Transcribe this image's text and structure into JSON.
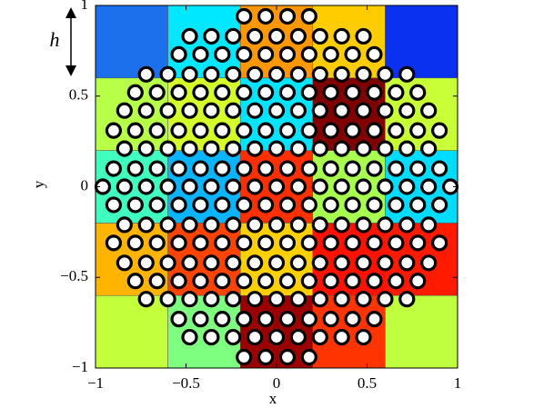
{
  "chart_data": {
    "type": "scatter",
    "xlabel": "x",
    "ylabel": "y",
    "annotation": "h",
    "xlim": [
      -1,
      1
    ],
    "ylim": [
      -1,
      1
    ],
    "xticks": [
      {
        "value": -1,
        "label": "−1"
      },
      {
        "value": -0.5,
        "label": "−0.5"
      },
      0,
      0.5,
      1
    ],
    "yticks": [
      {
        "value": -1,
        "label": "−1"
      },
      {
        "value": -0.5,
        "label": "−0.5"
      },
      0,
      0.5,
      1
    ],
    "cell_edges": [
      -1,
      -0.6,
      -0.2,
      0.2,
      0.6,
      1
    ],
    "cell_colors": [
      [
        "#c4ff3b",
        "#7fff80",
        "#9a0000",
        "#ff3400",
        "#c0ff3f"
      ],
      [
        "#ffb400",
        "#ff4400",
        "#ffd000",
        "#ff1200",
        "#ff1a00"
      ],
      [
        "#40ffbf",
        "#0ab4ff",
        "#ff3000",
        "#a8ff50",
        "#00dcff"
      ],
      [
        "#b8ff47",
        "#d4ff2a",
        "#00e4ff",
        "#800000",
        "#c8ff37"
      ],
      [
        "#1c70ec",
        "#00e8ff",
        "#ff9800",
        "#ffcc00",
        "#0a30f0"
      ]
    ],
    "marker_color": "#ffffff",
    "marker_edge": "#000000",
    "x": [
      -0.18,
      -0.06,
      0.06,
      0.18,
      -0.48,
      -0.36,
      -0.24,
      -0.12,
      0,
      0.12,
      0.24,
      0.36,
      0.48,
      -0.54,
      -0.42,
      -0.3,
      -0.18,
      -0.06,
      0.06,
      0.18,
      0.3,
      0.42,
      0.54,
      -0.72,
      -0.6,
      -0.48,
      -0.36,
      -0.24,
      -0.12,
      0,
      0.12,
      0.24,
      0.36,
      0.48,
      0.6,
      0.72,
      -0.78,
      -0.66,
      -0.54,
      -0.42,
      -0.3,
      -0.18,
      -0.06,
      0.06,
      0.18,
      0.3,
      0.42,
      0.54,
      0.66,
      0.78,
      -0.84,
      -0.72,
      -0.6,
      -0.48,
      -0.36,
      -0.24,
      -0.12,
      0,
      0.12,
      0.24,
      0.36,
      0.48,
      0.6,
      0.72,
      0.84,
      -0.9,
      -0.78,
      -0.66,
      -0.54,
      -0.42,
      -0.3,
      -0.18,
      -0.06,
      0.06,
      0.18,
      0.3,
      0.42,
      0.54,
      0.66,
      0.78,
      0.9,
      -0.84,
      -0.72,
      -0.6,
      -0.48,
      -0.36,
      -0.24,
      -0.12,
      0,
      0.12,
      0.24,
      0.36,
      0.48,
      0.6,
      0.72,
      0.84,
      -0.9,
      -0.78,
      -0.66,
      -0.54,
      -0.42,
      -0.3,
      -0.18,
      -0.06,
      0.06,
      0.18,
      0.3,
      0.42,
      0.54,
      0.66,
      0.78,
      0.9,
      -0.96,
      -0.84,
      -0.72,
      -0.6,
      -0.48,
      -0.36,
      -0.24,
      -0.12,
      0,
      0.12,
      0.24,
      0.36,
      0.48,
      0.6,
      0.72,
      0.84,
      0.96,
      -0.9,
      -0.78,
      -0.66,
      -0.54,
      -0.42,
      -0.3,
      -0.18,
      -0.06,
      0.06,
      0.18,
      0.3,
      0.42,
      0.54,
      0.66,
      0.78,
      0.9,
      -0.84,
      -0.72,
      -0.6,
      -0.48,
      -0.36,
      -0.24,
      -0.12,
      0,
      0.12,
      0.24,
      0.36,
      0.48,
      0.6,
      0.72,
      0.84,
      -0.9,
      -0.78,
      -0.66,
      -0.54,
      -0.42,
      -0.3,
      -0.18,
      -0.06,
      0.06,
      0.18,
      0.3,
      0.42,
      0.54,
      0.66,
      0.78,
      0.9,
      -0.84,
      -0.72,
      -0.6,
      -0.48,
      -0.36,
      -0.24,
      -0.12,
      0,
      0.12,
      0.24,
      0.36,
      0.48,
      0.6,
      0.72,
      0.84,
      -0.78,
      -0.66,
      -0.54,
      -0.42,
      -0.3,
      -0.18,
      -0.06,
      0.06,
      0.18,
      0.3,
      0.42,
      0.54,
      0.66,
      0.78,
      -0.72,
      -0.6,
      -0.48,
      -0.36,
      -0.24,
      -0.12,
      0,
      0.12,
      0.24,
      0.36,
      0.48,
      0.6,
      0.72,
      -0.54,
      -0.42,
      -0.3,
      -0.18,
      -0.06,
      0.06,
      0.18,
      0.3,
      0.42,
      0.54,
      -0.48,
      -0.36,
      -0.24,
      -0.12,
      0,
      0.12,
      0.24,
      0.36,
      0.48,
      -0.18,
      -0.06,
      0.06,
      0.18
    ],
    "y": [
      0.94,
      0.94,
      0.94,
      0.94,
      0.83,
      0.83,
      0.83,
      0.83,
      0.83,
      0.83,
      0.83,
      0.83,
      0.83,
      0.73,
      0.73,
      0.73,
      0.73,
      0.73,
      0.73,
      0.73,
      0.73,
      0.73,
      0.73,
      0.62,
      0.62,
      0.62,
      0.62,
      0.62,
      0.62,
      0.62,
      0.62,
      0.62,
      0.62,
      0.62,
      0.62,
      0.62,
      0.52,
      0.52,
      0.52,
      0.52,
      0.52,
      0.52,
      0.52,
      0.52,
      0.52,
      0.52,
      0.52,
      0.52,
      0.52,
      0.52,
      0.42,
      0.42,
      0.42,
      0.42,
      0.42,
      0.42,
      0.42,
      0.42,
      0.42,
      0.42,
      0.42,
      0.42,
      0.42,
      0.42,
      0.42,
      0.31,
      0.31,
      0.31,
      0.31,
      0.31,
      0.31,
      0.31,
      0.31,
      0.31,
      0.31,
      0.31,
      0.31,
      0.31,
      0.31,
      0.31,
      0.31,
      0.21,
      0.21,
      0.21,
      0.21,
      0.21,
      0.21,
      0.21,
      0.21,
      0.21,
      0.21,
      0.21,
      0.21,
      0.21,
      0.21,
      0.21,
      0.1,
      0.1,
      0.1,
      0.1,
      0.1,
      0.1,
      0.1,
      0.1,
      0.1,
      0.1,
      0.1,
      0.1,
      0.1,
      0.1,
      0.1,
      0.1,
      0,
      0,
      0,
      0,
      0,
      0,
      0,
      0,
      0,
      0,
      0,
      0,
      0,
      0,
      0,
      0,
      0,
      -0.1,
      -0.1,
      -0.1,
      -0.1,
      -0.1,
      -0.1,
      -0.1,
      -0.1,
      -0.1,
      -0.1,
      -0.1,
      -0.1,
      -0.1,
      -0.1,
      -0.1,
      -0.1,
      -0.21,
      -0.21,
      -0.21,
      -0.21,
      -0.21,
      -0.21,
      -0.21,
      -0.21,
      -0.21,
      -0.21,
      -0.21,
      -0.21,
      -0.21,
      -0.21,
      -0.21,
      -0.31,
      -0.31,
      -0.31,
      -0.31,
      -0.31,
      -0.31,
      -0.31,
      -0.31,
      -0.31,
      -0.31,
      -0.31,
      -0.31,
      -0.31,
      -0.31,
      -0.31,
      -0.31,
      -0.42,
      -0.42,
      -0.42,
      -0.42,
      -0.42,
      -0.42,
      -0.42,
      -0.42,
      -0.42,
      -0.42,
      -0.42,
      -0.42,
      -0.42,
      -0.42,
      -0.42,
      -0.52,
      -0.52,
      -0.52,
      -0.52,
      -0.52,
      -0.52,
      -0.52,
      -0.52,
      -0.52,
      -0.52,
      -0.52,
      -0.52,
      -0.52,
      -0.52,
      -0.62,
      -0.62,
      -0.62,
      -0.62,
      -0.62,
      -0.62,
      -0.62,
      -0.62,
      -0.62,
      -0.62,
      -0.62,
      -0.62,
      -0.62,
      -0.73,
      -0.73,
      -0.73,
      -0.73,
      -0.73,
      -0.73,
      -0.73,
      -0.73,
      -0.73,
      -0.73,
      -0.83,
      -0.83,
      -0.83,
      -0.83,
      -0.83,
      -0.83,
      -0.83,
      -0.83,
      -0.83,
      -0.94,
      -0.94,
      -0.94,
      -0.94
    ]
  }
}
